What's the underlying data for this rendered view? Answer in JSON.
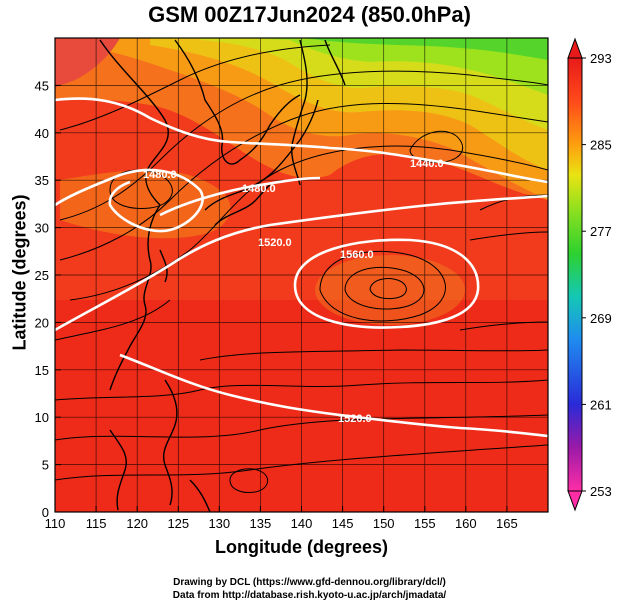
{
  "title": "GSM 00Z17Jun2024 (850.0hPa)",
  "axes": {
    "xlabel": "Longitude (degrees)",
    "ylabel": "Latitude  (degrees)",
    "xticks": [
      "110",
      "115",
      "120",
      "125",
      "130",
      "135",
      "140",
      "145",
      "150",
      "155",
      "160",
      "165"
    ],
    "yticks": [
      "0",
      "5",
      "10",
      "15",
      "20",
      "25",
      "30",
      "35",
      "40",
      "45"
    ],
    "xlim": [
      110,
      170
    ],
    "ylim": [
      0,
      50
    ]
  },
  "colorbar": {
    "labels": [
      "293",
      "285",
      "277",
      "269",
      "261",
      "253"
    ],
    "range": [
      253,
      293
    ],
    "colors": [
      "#ff2ea6",
      "#9b1aa8",
      "#2a2ad8",
      "#1f8cf0",
      "#14c8b4",
      "#2ed12e",
      "#8fe01f",
      "#e9e312",
      "#ff9f0f",
      "#ff4a1a",
      "#e81a1a"
    ]
  },
  "contours": {
    "labels": [
      "1440.0",
      "1480.0",
      "1480.0",
      "1520.0",
      "1560.0",
      "1520.0"
    ],
    "color": "#ffffff"
  },
  "credits": {
    "line1": "Drawing by DCL (https://www.gfd-dennou.org/library/dcl/)",
    "line2": "Data from http://database.rish.kyoto-u.ac.jp/arch/jmadata/"
  }
}
